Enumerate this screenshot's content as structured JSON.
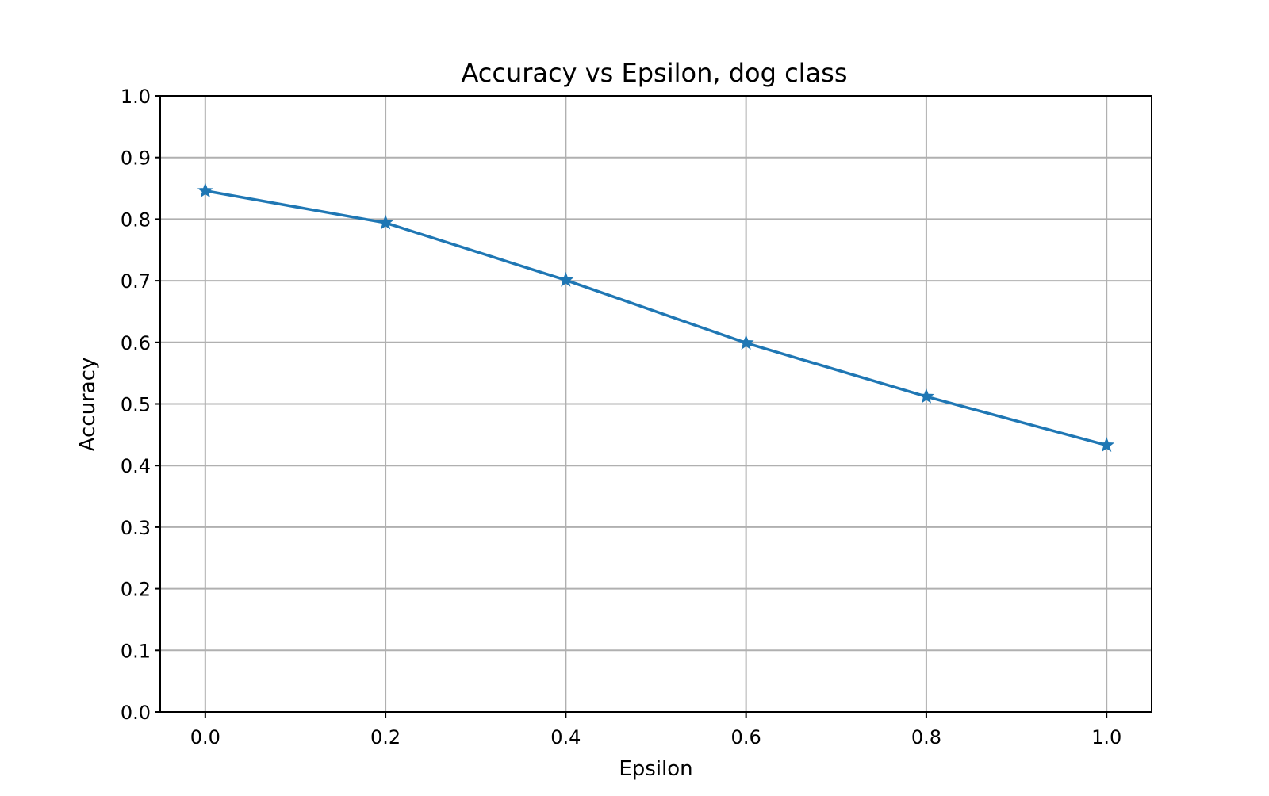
{
  "chart_data": {
    "type": "line",
    "title": "Accuracy vs Epsilon, dog class",
    "xlabel": "Epsilon",
    "ylabel": "Accuracy",
    "x": [
      0.0,
      0.2,
      0.4,
      0.6,
      0.8,
      1.0
    ],
    "x_tick_values": [
      0.0,
      0.2,
      0.4,
      0.6,
      0.8,
      1.0
    ],
    "x_tick_labels": [
      "0.0",
      "0.2",
      "0.4",
      "0.6",
      "0.8",
      "1.0"
    ],
    "y_tick_values": [
      0.0,
      0.1,
      0.2,
      0.3,
      0.4,
      0.5,
      0.6,
      0.7,
      0.8,
      0.9,
      1.0
    ],
    "y_tick_labels": [
      "0.0",
      "0.1",
      "0.2",
      "0.3",
      "0.4",
      "0.5",
      "0.6",
      "0.7",
      "0.8",
      "0.9",
      "1.0"
    ],
    "xlim": [
      -0.05,
      1.05
    ],
    "ylim": [
      0.0,
      1.0
    ],
    "grid": true,
    "series": [
      {
        "values": [
          0.846,
          0.794,
          0.701,
          0.599,
          0.512,
          0.433
        ],
        "color": "#1f77b4",
        "marker": "star"
      }
    ]
  }
}
